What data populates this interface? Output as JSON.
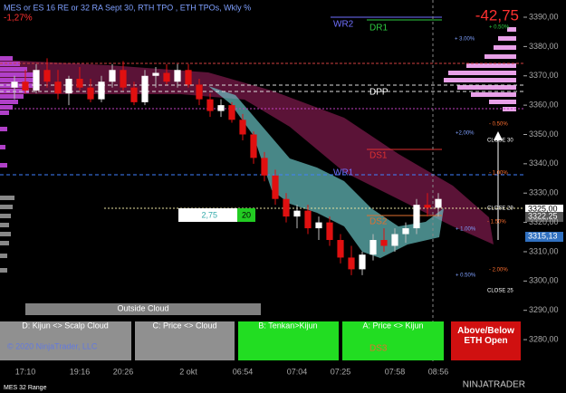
{
  "chart_data": {
    "type": "candlestick",
    "title": "MES or ES 16 RE or 32 RA Sept 30, RTH TPO , ETH TPOs, Wkly %",
    "change": "-42,75",
    "change_pct": "-1,27%",
    "categories": [
      null,
      "17:10",
      null,
      null,
      null,
      null,
      "19:16",
      null,
      null,
      null,
      "20:26",
      null,
      null,
      null,
      null,
      null,
      "2 okt",
      null,
      null,
      null,
      null,
      "06:54",
      null,
      null,
      null,
      null,
      "07:04",
      null,
      null,
      null,
      "07:25",
      null,
      null,
      null,
      null,
      "07:58",
      null,
      null,
      null,
      "08:56"
    ],
    "open": [
      3366,
      3368,
      3365,
      3372,
      3368,
      3364,
      3369,
      3366,
      3362,
      3368,
      3372,
      3366,
      3361,
      3370,
      3371,
      3368,
      3372,
      3367,
      3362,
      3358,
      3360,
      3355,
      3350,
      3342,
      3336,
      3328,
      3322,
      3324,
      3318,
      3320,
      3314,
      3308,
      3304,
      3309,
      3314,
      3312,
      3316,
      3318,
      3326,
      3325
    ],
    "high": [
      3370,
      3372,
      3374,
      3376,
      3372,
      3370,
      3373,
      3369,
      3370,
      3374,
      3375,
      3368,
      3372,
      3373,
      3374,
      3374,
      3374,
      3369,
      3364,
      3362,
      3361,
      3357,
      3351,
      3344,
      3338,
      3330,
      3326,
      3326,
      3322,
      3322,
      3316,
      3312,
      3310,
      3316,
      3318,
      3318,
      3320,
      3328,
      3330,
      3330
    ],
    "low": [
      3362,
      3364,
      3364,
      3366,
      3362,
      3360,
      3365,
      3361,
      3361,
      3366,
      3365,
      3360,
      3360,
      3366,
      3367,
      3366,
      3366,
      3360,
      3356,
      3356,
      3354,
      3348,
      3340,
      3334,
      3326,
      3320,
      3318,
      3316,
      3314,
      3312,
      3306,
      3302,
      3302,
      3307,
      3310,
      3310,
      3313,
      3316,
      3322,
      3322
    ],
    "close": [
      3368,
      3365,
      3372,
      3368,
      3364,
      3369,
      3366,
      3362,
      3368,
      3372,
      3366,
      3361,
      3370,
      3371,
      3368,
      3372,
      3367,
      3362,
      3358,
      3360,
      3355,
      3350,
      3342,
      3336,
      3328,
      3322,
      3324,
      3318,
      3320,
      3314,
      3308,
      3304,
      3309,
      3314,
      3312,
      3316,
      3318,
      3326,
      3325,
      3328
    ],
    "up_color": "#ffffff",
    "down_color": "#e01010",
    "ylim": [
      3272.3,
      3393.4
    ],
    "yticks": [
      {
        "value": 3280,
        "label": "3280,00"
      },
      {
        "value": 3290,
        "label": "3290,00"
      },
      {
        "value": 3300,
        "label": "3300,00"
      },
      {
        "value": 3310,
        "label": "3310,00"
      },
      {
        "value": 3320,
        "label": "3320,00"
      },
      {
        "value": 3330,
        "label": "3330,00"
      },
      {
        "value": 3340,
        "label": "3340,00"
      },
      {
        "value": 3350,
        "label": "3350,00"
      },
      {
        "value": 3360,
        "label": "3360,00"
      },
      {
        "value": 3370,
        "label": "3370,00"
      },
      {
        "value": 3380,
        "label": "3380,00"
      },
      {
        "value": 3390,
        "label": "3390,00"
      }
    ],
    "levels": [
      "WR2",
      "DR1",
      "DPP",
      "DS1",
      "WR1",
      "DS2",
      "DS3"
    ],
    "percent_labels": [
      "+ 0.50%",
      "+ 3.00%",
      "- 0.50%",
      "+2,00%",
      "CLOSE 30",
      "- 1.00%",
      "CLOSE 29",
      "- 1.50%",
      "+ 1.00%",
      "- 2.00%",
      "+ 0.50%",
      "CLOSE 25"
    ],
    "price_tags": [
      "3325,00",
      "3322,25",
      "3315,13"
    ],
    "boxes": [
      "2,75",
      "20"
    ],
    "cloud_status": "Outside Cloud",
    "buttons": [
      "D: Kijun <> Scalp Cloud",
      "C: Price <> Cloud",
      "B: Tenkan>Kijun",
      "A: Price <> Kijun",
      "Above/Below ETH Open"
    ],
    "copyright": "© 2020 NinjaTrader, LLC",
    "instrument": "MES 32 Range",
    "brand": "NINJATRADER"
  }
}
